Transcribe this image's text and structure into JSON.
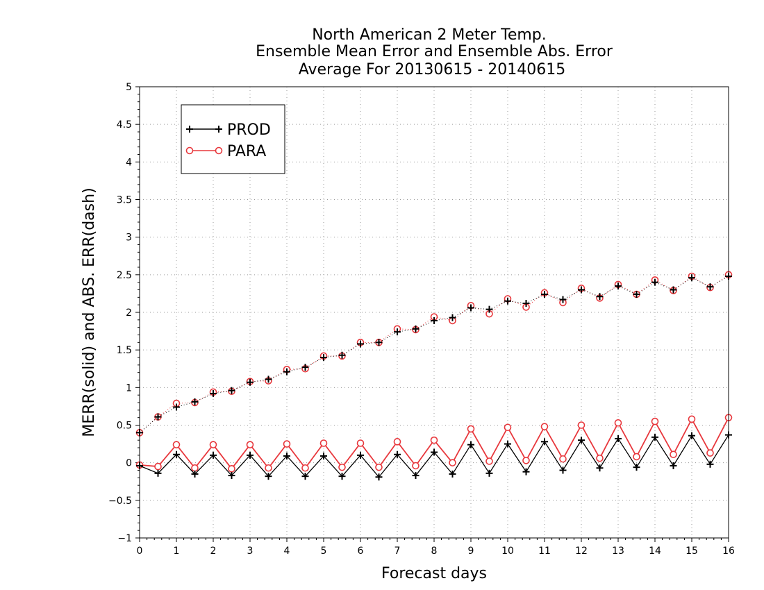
{
  "chart_data": {
    "type": "line",
    "title": [
      "North American 2 Meter Temp.",
      "Ensemble Mean Error and Ensemble Abs. Error",
      "Average For 20130615 - 20140615"
    ],
    "xlabel": "Forecast days",
    "ylabel": "MERR(solid) and ABS. ERR(dash)",
    "xlim": [
      0,
      16
    ],
    "ylim": [
      -1,
      5
    ],
    "x_ticks": [
      0,
      1,
      2,
      3,
      4,
      5,
      6,
      7,
      8,
      9,
      10,
      11,
      12,
      13,
      14,
      15,
      16
    ],
    "y_ticks": [
      -1,
      -0.5,
      0,
      0.5,
      1,
      1.5,
      2,
      2.5,
      3,
      3.5,
      4,
      4.5,
      5
    ],
    "grid": true,
    "legend_position": "top-left",
    "x": [
      0,
      0.5,
      1,
      1.5,
      2,
      2.5,
      3,
      3.5,
      4,
      4.5,
      5,
      5.5,
      6,
      6.5,
      7,
      7.5,
      8,
      8.5,
      9,
      9.5,
      10,
      10.5,
      11,
      11.5,
      12,
      12.5,
      13,
      13.5,
      14,
      14.5,
      15,
      15.5,
      16
    ],
    "series": [
      {
        "name": "PROD",
        "color": "#000000",
        "marker": "plus",
        "merr": [
          -0.04,
          -0.14,
          0.11,
          -0.15,
          0.1,
          -0.17,
          0.1,
          -0.18,
          0.09,
          -0.18,
          0.09,
          -0.18,
          0.1,
          -0.19,
          0.11,
          -0.17,
          0.14,
          -0.15,
          0.24,
          -0.14,
          0.25,
          -0.12,
          0.28,
          -0.1,
          0.3,
          -0.07,
          0.32,
          -0.06,
          0.34,
          -0.04,
          0.36,
          -0.02,
          0.37
        ],
        "abs_err": [
          0.4,
          0.61,
          0.74,
          0.81,
          0.92,
          0.96,
          1.07,
          1.11,
          1.21,
          1.27,
          1.4,
          1.43,
          1.58,
          1.6,
          1.74,
          1.78,
          1.89,
          1.93,
          2.06,
          2.04,
          2.15,
          2.12,
          2.24,
          2.17,
          2.3,
          2.21,
          2.35,
          2.24,
          2.4,
          2.3,
          2.46,
          2.34,
          2.48
        ]
      },
      {
        "name": "PARA",
        "color": "#e8383d",
        "marker": "circle",
        "merr": [
          -0.03,
          -0.05,
          0.24,
          -0.07,
          0.24,
          -0.08,
          0.24,
          -0.07,
          0.25,
          -0.07,
          0.26,
          -0.06,
          0.26,
          -0.06,
          0.28,
          -0.04,
          0.3,
          0.0,
          0.45,
          0.02,
          0.47,
          0.03,
          0.48,
          0.05,
          0.5,
          0.06,
          0.53,
          0.08,
          0.55,
          0.11,
          0.58,
          0.13,
          0.6
        ],
        "abs_err": [
          0.4,
          0.61,
          0.79,
          0.8,
          0.94,
          0.95,
          1.08,
          1.09,
          1.24,
          1.25,
          1.42,
          1.42,
          1.6,
          1.6,
          1.78,
          1.77,
          1.94,
          1.89,
          2.09,
          1.98,
          2.18,
          2.07,
          2.26,
          2.13,
          2.32,
          2.19,
          2.37,
          2.24,
          2.43,
          2.29,
          2.48,
          2.33,
          2.5
        ]
      }
    ]
  }
}
